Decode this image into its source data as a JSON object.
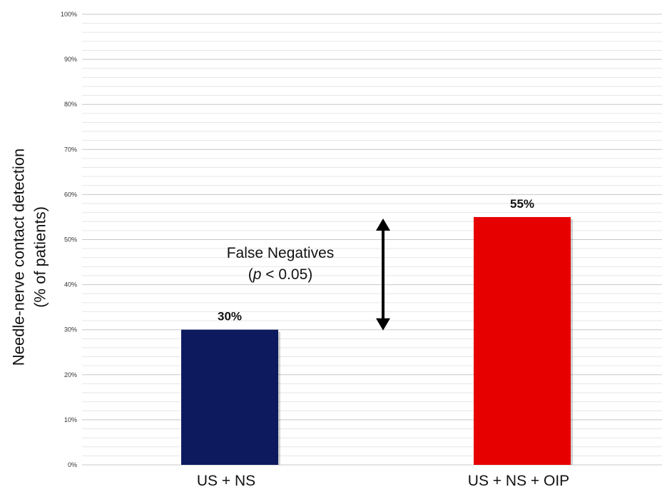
{
  "chart_data": {
    "type": "bar",
    "categories": [
      "US + NS",
      "US + NS + OIP"
    ],
    "values": [
      30,
      55
    ],
    "value_labels": [
      "30%",
      "55%"
    ],
    "colors": [
      "#0d1b5e",
      "#e60000"
    ],
    "ylabel_lines": [
      "Needle-nerve contact detection",
      "(% of patients)"
    ],
    "ylim": [
      0,
      100
    ],
    "yticks": [
      0,
      10,
      20,
      30,
      40,
      50,
      60,
      70,
      80,
      90,
      100
    ],
    "ytick_labels": [
      "0%",
      "10%",
      "20%",
      "30%",
      "40%",
      "50%",
      "60%",
      "70%",
      "80%",
      "90%",
      "100%"
    ],
    "grid": true,
    "annotation": {
      "line1": "False Negatives",
      "line2_italic": "p",
      "line2_rest": " < 0.05)",
      "line2_open": "(",
      "arrow_from": 30,
      "arrow_to": 55
    }
  }
}
